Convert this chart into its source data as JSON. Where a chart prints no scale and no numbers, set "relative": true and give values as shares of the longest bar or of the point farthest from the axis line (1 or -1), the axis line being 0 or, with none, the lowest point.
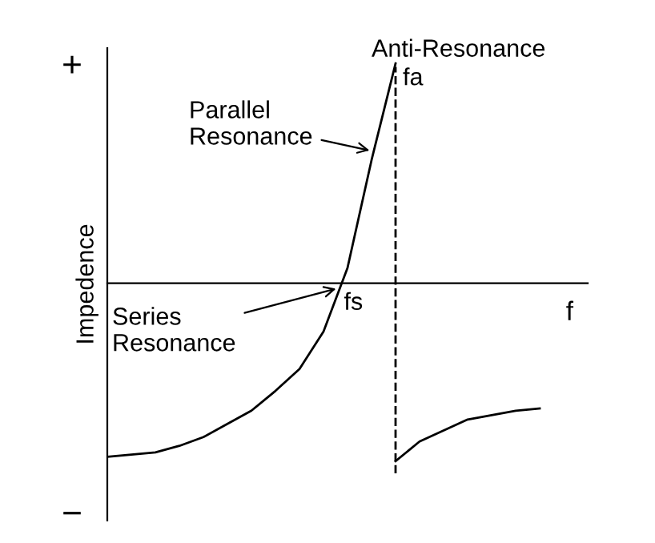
{
  "chart_data": {
    "type": "line",
    "relative": true,
    "xlabel": "f",
    "ylabel": "Impedence",
    "marker": "none",
    "line_style": "solid",
    "categories": [
      null,
      null,
      null,
      null,
      null,
      null,
      null,
      null,
      null,
      null,
      null,
      null,
      null,
      null,
      null,
      null,
      null,
      null,
      null,
      null,
      null
    ],
    "series": [
      {
        "color": "#000000",
        "values": [
          -0.79,
          -0.78,
          -0.77,
          -0.74,
          -0.7,
          -0.64,
          -0.58,
          -0.49,
          -0.39,
          -0.22,
          0.07,
          0.56,
          1.0,
          null,
          null,
          null,
          null,
          null,
          null,
          null,
          null
        ]
      },
      {
        "color": "#000000",
        "values": [
          null,
          null,
          null,
          null,
          null,
          null,
          null,
          null,
          null,
          null,
          null,
          null,
          -0.81,
          -0.72,
          -0.67,
          -0.62,
          -0.6,
          -0.58,
          -0.57,
          null,
          null
        ]
      }
    ],
    "ref_lines": [
      {
        "axis": "x",
        "label": "fa",
        "line_style": "dashed",
        "color": "#000000"
      }
    ],
    "annotations": [
      "fs",
      "Anti-Resonance",
      "Parallel Resonance",
      "Series Resonance",
      "+",
      "−"
    ]
  }
}
